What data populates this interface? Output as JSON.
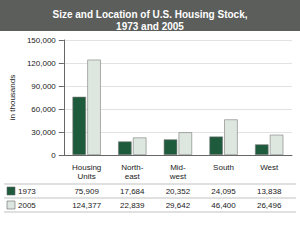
{
  "chart_data": {
    "type": "bar",
    "title": "Size and Location of U.S. Housing Stock, 1973 and 2005",
    "y_label": "in thousands",
    "categories": [
      "Housing Units",
      "North-east",
      "Mid-west",
      "South",
      "West"
    ],
    "series": [
      {
        "name": "1973",
        "color": "#1e5b3c",
        "values": [
          75909,
          17684,
          20352,
          24095,
          13838
        ],
        "value_labels": [
          "75,909",
          "17,684",
          "20,352",
          "24,095",
          "13,838"
        ]
      },
      {
        "name": "2005",
        "color": "#dde7df",
        "values": [
          124377,
          22839,
          29642,
          46400,
          26496
        ],
        "value_labels": [
          "124,377",
          "22,839",
          "29,642",
          "46,400",
          "26,496"
        ]
      }
    ],
    "ylim": [
      0,
      150000
    ],
    "yticks": [
      0,
      {
        "value": 30000,
        "label": "30,000"
      },
      {
        "value": 60000,
        "label": "60,000"
      },
      {
        "value": 90000,
        "label": "90,000"
      },
      {
        "value": 120000,
        "label": "120,000"
      },
      {
        "value": 150000,
        "label": "150,000"
      }
    ],
    "grid": true,
    "data_labels": true
  }
}
